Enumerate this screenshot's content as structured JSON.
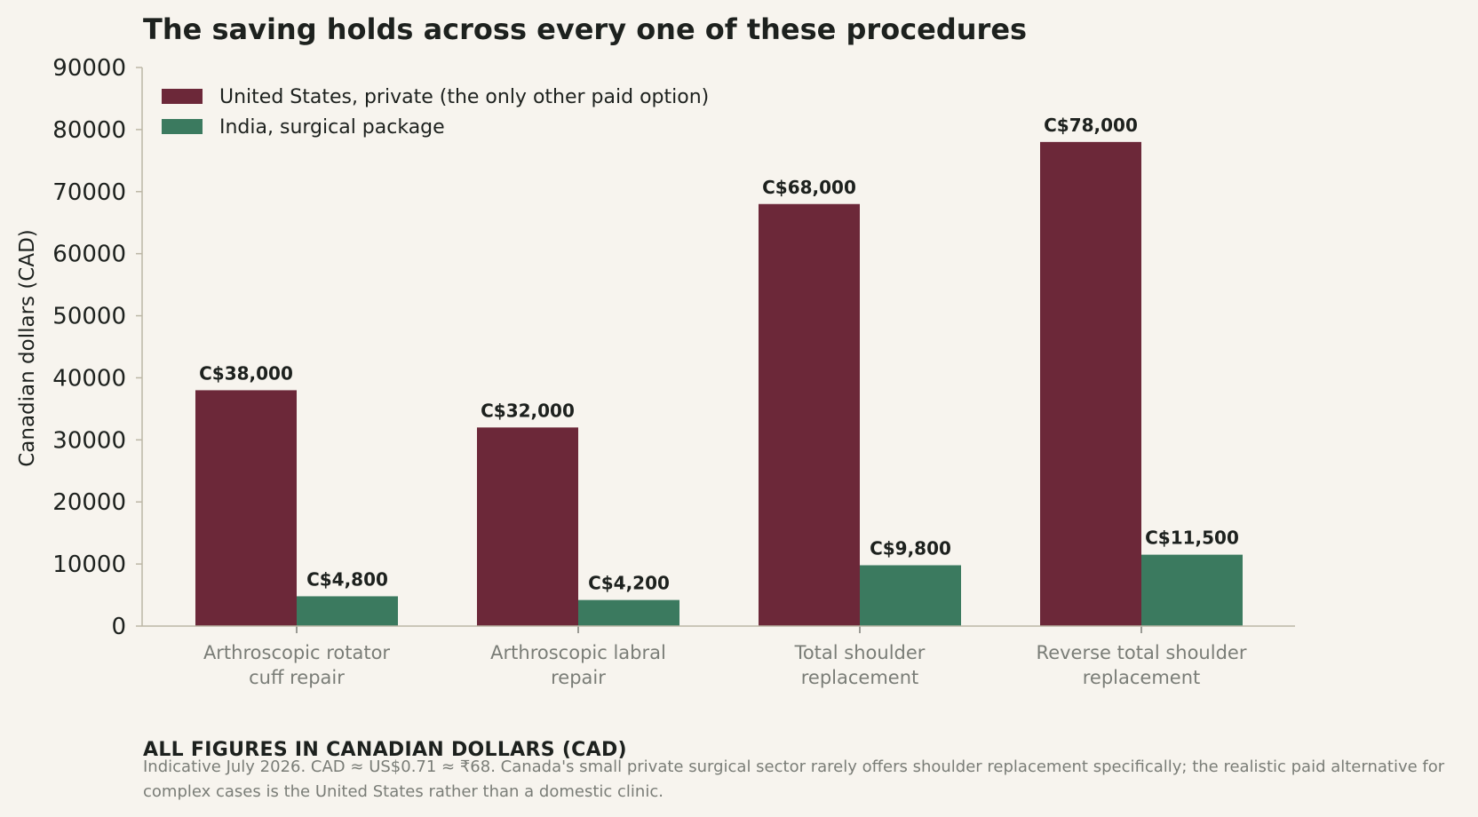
{
  "chart_data": {
    "type": "bar",
    "title": "The saving holds across every one of these procedures",
    "ylabel": "Canadian dollars (CAD)",
    "xlabel": "",
    "ylim": [
      0,
      90000
    ],
    "yticks": [
      "0",
      "10000",
      "20000",
      "30000",
      "40000",
      "50000",
      "60000",
      "70000",
      "80000",
      "90000"
    ],
    "categories": [
      [
        "Arthroscopic rotator",
        "cuff repair"
      ],
      [
        "Arthroscopic labral",
        "repair"
      ],
      [
        "Total shoulder",
        "replacement"
      ],
      [
        "Reverse total shoulder",
        "replacement"
      ]
    ],
    "series": [
      {
        "name": "United States, private (the only other paid option)",
        "color": "#6c2839",
        "values": [
          38000,
          32000,
          68000,
          78000
        ],
        "labels": [
          "C$38,000",
          "C$32,000",
          "C$68,000",
          "C$78,000"
        ]
      },
      {
        "name": "India, surgical package",
        "color": "#3b7a5f",
        "values": [
          4800,
          4200,
          9800,
          11500
        ],
        "labels": [
          "C$4,800",
          "C$4,200",
          "C$9,800",
          "C$11,500"
        ]
      }
    ],
    "grid": false,
    "legend": "top-left"
  },
  "footer": {
    "heading": "ALL FIGURES IN CANADIAN DOLLARS (CAD)",
    "note": "Indicative July 2026. CAD ≈ US$0.71 ≈ ₹68. Canada's small private surgical sector rarely offers shoulder replacement specifically; the realistic paid alternative for complex cases is the United States rather than a domestic clinic."
  }
}
